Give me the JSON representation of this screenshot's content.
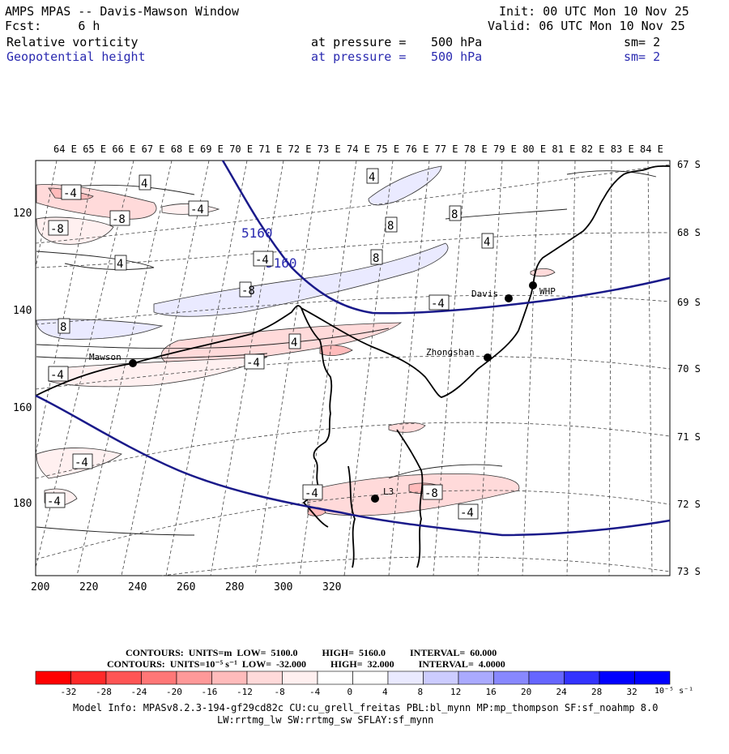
{
  "header": {
    "title": "AMPS MPAS -- Davis-Mawson Window",
    "fcst_label": "Fcst:",
    "fcst_value": "6 h",
    "init": "Init: 00 UTC Mon 10 Nov 25",
    "valid": "Valid: 06 UTC Mon 10 Nov 25",
    "field1": {
      "name": "Relative vorticity",
      "level_text": "at pressure =",
      "level": "500 hPa",
      "sm": "sm= 2"
    },
    "field2": {
      "name": "Geopotential height",
      "level_text": "at pressure =",
      "level": "500 hPa",
      "sm": "sm= 2"
    }
  },
  "map": {
    "top_lon_labels": [
      "64 E",
      "65 E",
      "66 E",
      "67 E",
      "68 E",
      "69 E",
      "70 E",
      "71 E",
      "72 E",
      "73 E",
      "74 E",
      "75 E",
      "76 E",
      "77 E",
      "78 E",
      "79 E",
      "80 E",
      "81 E",
      "82 E",
      "83 E",
      "84 E"
    ],
    "right_lat_labels": [
      "67 S",
      "68 S",
      "69 S",
      "70 S",
      "71 S",
      "72 S",
      "73 S"
    ],
    "x_ticks": [
      "200",
      "220",
      "240",
      "260",
      "280",
      "300",
      "320"
    ],
    "y_ticks": [
      "120",
      "140",
      "160",
      "180"
    ],
    "stations": [
      "Davis",
      "WHP",
      "Mawson",
      "Zhongshan",
      "L3"
    ],
    "height_labels": [
      "5160",
      "5160"
    ],
    "vort_labels": [
      "4",
      "-4",
      "-8",
      "8",
      "4",
      "-4",
      "-8",
      "8",
      "4",
      "-4",
      "8",
      "4",
      "-4",
      "-8",
      "4",
      "-4",
      "8",
      "-4",
      "-4",
      "-4",
      "-4",
      "-4",
      "-8"
    ]
  },
  "legend": {
    "contour1": {
      "label": "CONTOURS:",
      "units": "UNITS=m",
      "low": "LOW=",
      "low_val": "5100.0",
      "high": "HIGH=",
      "high_val": "5160.0",
      "interval": "INTERVAL=",
      "interval_val": "60.000"
    },
    "contour2": {
      "label": "CONTOURS:",
      "units": "UNITS=10⁻⁵ s⁻¹",
      "low": "LOW=",
      "low_val": "-32.000",
      "high": "HIGH=",
      "high_val": "32.000",
      "interval": "INTERVAL=",
      "interval_val": "4.0000"
    },
    "colorbar_labels": [
      "-32",
      "-28",
      "-24",
      "-20",
      "-16",
      "-12",
      "-8",
      "-4",
      "0",
      "4",
      "8",
      "12",
      "16",
      "20",
      "24",
      "28",
      "32"
    ],
    "colorbar_unit": "10⁻⁵ s⁻¹",
    "colors": [
      "#ff0000",
      "#ff2a2a",
      "#ff5555",
      "#ff7777",
      "#ff9999",
      "#ffbbbb",
      "#ffdada",
      "#fff0f0",
      "#ffffff",
      "#ffffff",
      "#eaeaff",
      "#ccccff",
      "#aaaaff",
      "#8888ff",
      "#6666ff",
      "#3333ff",
      "#0000ff",
      "#0000ff"
    ]
  },
  "model_info": {
    "line1": "Model Info: MPASv8.2.3-194-gf29cd82c CU:cu_grell_freitas PBL:bl_mynn MP:mp_thompson SF:sf_noahmp 8.0",
    "line2": "LW:rrtmg_lw SW:rrtmg_sw SFLAY:sf_mynn"
  }
}
